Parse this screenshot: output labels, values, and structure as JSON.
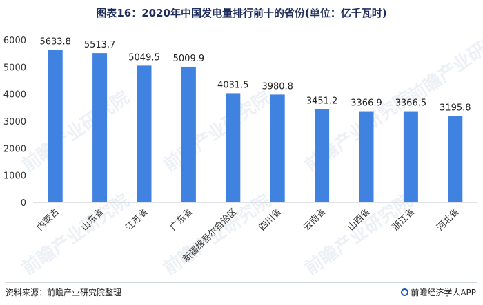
{
  "chart_data": {
    "type": "bar",
    "title": "图表16：2020年中国发电量排行前十的省份(单位：亿千瓦时)",
    "categories": [
      "内蒙古",
      "山东省",
      "江苏省",
      "广东省",
      "新疆维吾尔自治区",
      "四川省",
      "云南省",
      "山西省",
      "浙江省",
      "河北省"
    ],
    "values": [
      5633.8,
      5513.7,
      5049.5,
      5009.9,
      4031.5,
      3980.8,
      3451.2,
      3366.9,
      3366.5,
      3195.8
    ],
    "value_labels": [
      "5633.8",
      "5513.7",
      "5049.5",
      "5009.9",
      "4031.5",
      "3980.8",
      "3451.2",
      "3366.9",
      "3366.5",
      "3195.8"
    ],
    "ylim": [
      0,
      6000
    ],
    "yticks": [
      "0",
      "1000",
      "2000",
      "3000",
      "4000",
      "5000",
      "6000"
    ],
    "ytick_values": [
      0,
      1000,
      2000,
      3000,
      4000,
      5000,
      6000
    ],
    "bar_color": "#3f82e0",
    "grid": false,
    "xlabel": "",
    "ylabel": ""
  },
  "footer": {
    "source": "资料来源：前瞻产业研究院整理",
    "brand": "前瞻经济学人APP"
  },
  "watermark": {
    "text": "前瞻产业研究院"
  }
}
